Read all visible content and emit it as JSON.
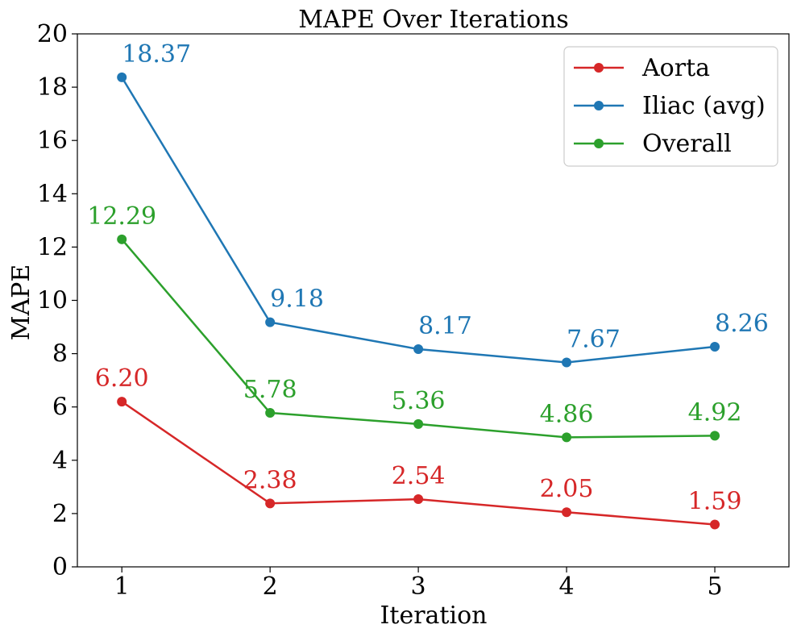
{
  "chart_data": {
    "type": "line",
    "title": "MAPE Over Iterations",
    "xlabel": "Iteration",
    "ylabel": "MAPE",
    "x": [
      1,
      2,
      3,
      4,
      5
    ],
    "xlim": [
      0.7,
      5.5
    ],
    "ylim": [
      0,
      20
    ],
    "yticks": [
      0,
      2,
      4,
      6,
      8,
      10,
      12,
      14,
      16,
      18,
      20
    ],
    "xticks": [
      1,
      2,
      3,
      4,
      5
    ],
    "grid": false,
    "legend_position": "top-right",
    "series": [
      {
        "name": "Aorta",
        "color": "#d62728",
        "values": [
          6.2,
          2.38,
          2.54,
          2.05,
          1.59
        ],
        "labels": [
          "6.20",
          "2.38",
          "2.54",
          "2.05",
          "1.59"
        ],
        "label_align": "middle"
      },
      {
        "name": "Iliac (avg)",
        "color": "#1f77b4",
        "values": [
          18.37,
          9.18,
          8.17,
          7.67,
          8.26
        ],
        "labels": [
          "18.37",
          "9.18",
          "8.17",
          "7.67",
          "8.26"
        ],
        "label_align": "start"
      },
      {
        "name": "Overall",
        "color": "#2ca02c",
        "values": [
          12.29,
          5.78,
          5.36,
          4.86,
          4.92
        ],
        "labels": [
          "12.29",
          "5.78",
          "5.36",
          "4.86",
          "4.92"
        ],
        "label_align": "middle"
      }
    ]
  }
}
